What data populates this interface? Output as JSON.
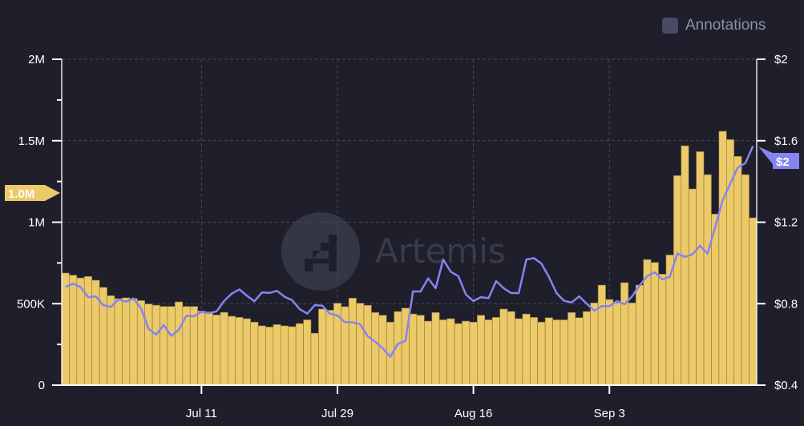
{
  "annotations_toggle": {
    "label": "Annotations",
    "checked": false
  },
  "watermark": {
    "text": "Artemis"
  },
  "colors": {
    "background": "#1e1f2b",
    "bar": "#ecca68",
    "bar_edge": "#8a7540",
    "line": "#8683f2",
    "grid": "#454757",
    "axis": "#ffffff"
  },
  "chart_data": {
    "type": "bar+line",
    "grid": true,
    "x_tick_labels": [
      "Jul 11",
      "Jul 29",
      "Aug 16",
      "Sep 3"
    ],
    "left_axis": {
      "ylim": [
        0,
        2000000
      ],
      "tick_labels": [
        "0",
        "500K",
        "1M",
        "1.5M",
        "2M"
      ],
      "tick_values": [
        0,
        500000,
        1000000,
        1500000,
        2000000
      ]
    },
    "right_axis": {
      "ylim": [
        0.4,
        2.0
      ],
      "tick_labels": [
        "$0.4",
        "$0.8",
        "$1.2",
        "$1.6",
        "$2"
      ],
      "tick_values": [
        0.4,
        0.8,
        1.2,
        1.6,
        2.0
      ]
    },
    "last_value_labels": {
      "bar": "1.0M",
      "line": "$2"
    },
    "x": [
      "Jun 23",
      "Jun 24",
      "Jun 25",
      "Jun 26",
      "Jun 27",
      "Jun 28",
      "Jun 29",
      "Jun 30",
      "Jul 1",
      "Jul 2",
      "Jul 3",
      "Jul 4",
      "Jul 5",
      "Jul 6",
      "Jul 7",
      "Jul 8",
      "Jul 9",
      "Jul 10",
      "Jul 11",
      "Jul 12",
      "Jul 13",
      "Jul 14",
      "Jul 15",
      "Jul 16",
      "Jul 17",
      "Jul 18",
      "Jul 19",
      "Jul 20",
      "Jul 21",
      "Jul 22",
      "Jul 23",
      "Jul 24",
      "Jul 25",
      "Jul 26",
      "Jul 27",
      "Jul 28",
      "Jul 29",
      "Jul 30",
      "Jul 31",
      "Aug 1",
      "Aug 2",
      "Aug 3",
      "Aug 4",
      "Aug 5",
      "Aug 6",
      "Aug 7",
      "Aug 8",
      "Aug 9",
      "Aug 10",
      "Aug 11",
      "Aug 12",
      "Aug 13",
      "Aug 14",
      "Aug 15",
      "Aug 16",
      "Aug 17",
      "Aug 18",
      "Aug 19",
      "Aug 20",
      "Aug 21",
      "Aug 22",
      "Aug 23",
      "Aug 24",
      "Aug 25",
      "Aug 26",
      "Aug 27",
      "Aug 28",
      "Aug 29",
      "Aug 30",
      "Aug 31",
      "Sep 1",
      "Sep 2",
      "Sep 3",
      "Sep 4",
      "Sep 5",
      "Sep 6",
      "Sep 7",
      "Sep 8",
      "Sep 9",
      "Sep 10",
      "Sep 11",
      "Sep 12",
      "Sep 13",
      "Sep 14",
      "Sep 15",
      "Sep 16",
      "Sep 17",
      "Sep 18",
      "Sep 19",
      "Sep 20",
      "Sep 21",
      "Sep 22"
    ],
    "series": [
      {
        "type": "bar",
        "axis": "left",
        "values": [
          688000,
          675000,
          658000,
          667000,
          644000,
          600000,
          549000,
          531000,
          536000,
          532000,
          519000,
          498000,
          491000,
          483000,
          483000,
          511000,
          483000,
          483000,
          455000,
          450000,
          431000,
          447000,
          423000,
          416000,
          408000,
          387000,
          364000,
          357000,
          372000,
          364000,
          359000,
          378000,
          401000,
          319000,
          467000,
          460000,
          503000,
          482000,
          534000,
          503000,
          490000,
          446000,
          429000,
          387000,
          452000,
          473000,
          437000,
          429000,
          393000,
          446000,
          401000,
          408000,
          378000,
          393000,
          387000,
          429000,
          401000,
          416000,
          467000,
          452000,
          408000,
          437000,
          416000,
          387000,
          414000,
          401000,
          401000,
          446000,
          414000,
          452000,
          505000,
          614000,
          526000,
          505000,
          629000,
          505000,
          614000,
          771000,
          753000,
          681000,
          799000,
          1286000,
          1469000,
          1204000,
          1433000,
          1292000,
          1050000,
          1558000,
          1507000,
          1404000,
          1292000,
          1027000
        ]
      },
      {
        "type": "line",
        "axis": "right",
        "values": [
          0.882,
          0.898,
          0.881,
          0.832,
          0.836,
          0.793,
          0.784,
          0.821,
          0.81,
          0.826,
          0.777,
          0.676,
          0.648,
          0.695,
          0.642,
          0.672,
          0.741,
          0.738,
          0.76,
          0.754,
          0.762,
          0.813,
          0.849,
          0.87,
          0.84,
          0.812,
          0.855,
          0.853,
          0.863,
          0.834,
          0.817,
          0.773,
          0.751,
          0.793,
          0.79,
          0.751,
          0.742,
          0.709,
          0.709,
          0.699,
          0.64,
          0.613,
          0.581,
          0.539,
          0.603,
          0.617,
          0.86,
          0.86,
          0.924,
          0.876,
          1.017,
          0.957,
          0.935,
          0.845,
          0.813,
          0.832,
          0.827,
          0.911,
          0.876,
          0.852,
          0.852,
          1.017,
          1.024,
          0.997,
          0.931,
          0.852,
          0.814,
          0.806,
          0.836,
          0.8,
          0.766,
          0.788,
          0.788,
          0.813,
          0.797,
          0.836,
          0.889,
          0.936,
          0.954,
          0.919,
          0.932,
          1.046,
          1.03,
          1.042,
          1.085,
          1.046,
          1.177,
          1.308,
          1.389,
          1.468,
          1.49,
          1.574
        ]
      }
    ]
  }
}
